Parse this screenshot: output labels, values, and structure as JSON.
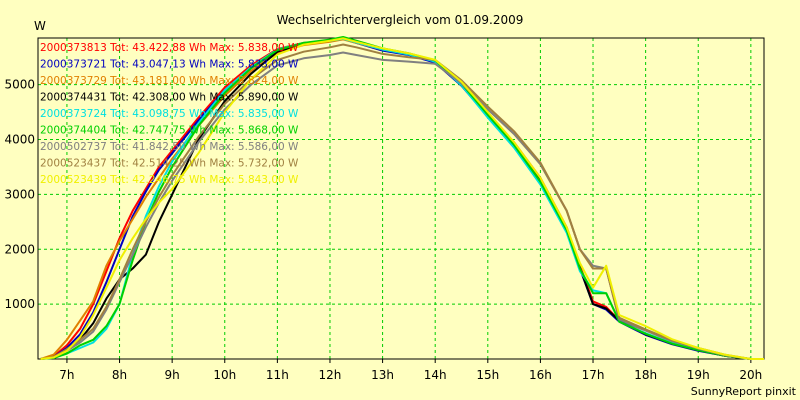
{
  "chart_data": {
    "type": "line",
    "title": "Wechselrichtervergleich vom 01.09.2009",
    "ylabel": "W",
    "footer": "SunnyReport pinxit",
    "background": "#ffffc0",
    "grid_color": "#00cc00",
    "grid": true,
    "legend_position": "top-left",
    "xlim": [
      6.45,
      20.25
    ],
    "ylim": [
      0,
      5850
    ],
    "x_ticks": [
      7,
      8,
      9,
      10,
      11,
      12,
      13,
      14,
      15,
      16,
      17,
      18,
      19,
      20
    ],
    "x_tick_labels": [
      "7h",
      "8h",
      "9h",
      "10h",
      "11h",
      "12h",
      "13h",
      "14h",
      "15h",
      "16h",
      "17h",
      "18h",
      "19h",
      "20h"
    ],
    "y_ticks": [
      1000,
      2000,
      3000,
      4000,
      5000
    ],
    "y_tick_labels": [
      "1000",
      "2000",
      "3000",
      "4000",
      "5000"
    ],
    "series": [
      {
        "name": "2000373813 Tot: 43.422,88 Wh Max: 5.838,00 W",
        "color": "#ff0000",
        "x": [
          6.5,
          6.75,
          7,
          7.25,
          7.5,
          7.75,
          8,
          8.25,
          8.5,
          8.75,
          9,
          9.5,
          10,
          10.5,
          11,
          11.5,
          12,
          12.25,
          12.5,
          13,
          13.5,
          14,
          14.5,
          15,
          15.5,
          16,
          16.5,
          16.75,
          17,
          17.25,
          17.5,
          18,
          18.5,
          19,
          19.5,
          20,
          20.25
        ],
        "y": [
          0,
          50,
          250,
          550,
          1000,
          1600,
          2200,
          2700,
          3100,
          3500,
          3800,
          4400,
          4950,
          5350,
          5650,
          5760,
          5800,
          5838,
          5780,
          5650,
          5560,
          5420,
          5000,
          4450,
          3950,
          3300,
          2400,
          1700,
          1050,
          950,
          700,
          450,
          280,
          160,
          60,
          0,
          0
        ]
      },
      {
        "name": "2000373721 Tot: 43.047,13 Wh Max: 5.833,00 W",
        "color": "#0000c0",
        "x": [
          6.5,
          6.75,
          7,
          7.25,
          7.5,
          7.75,
          8,
          8.25,
          8.5,
          8.75,
          9,
          9.5,
          10,
          10.5,
          11,
          11.5,
          12,
          12.25,
          12.5,
          13,
          13.5,
          14,
          14.5,
          15,
          15.5,
          16,
          16.5,
          16.75,
          17,
          17.25,
          17.5,
          18,
          18.5,
          19,
          19.5,
          20,
          20.25
        ],
        "y": [
          0,
          40,
          200,
          450,
          850,
          1400,
          2000,
          2600,
          3050,
          3450,
          3750,
          4350,
          4900,
          5300,
          5620,
          5740,
          5790,
          5833,
          5760,
          5620,
          5540,
          5400,
          4980,
          4420,
          3900,
          3250,
          2350,
          1650,
          1000,
          900,
          680,
          440,
          270,
          150,
          60,
          0,
          0
        ]
      },
      {
        "name": "2000373729 Tot: 43.181,00 Wh Max: 5.824,00 W",
        "color": "#e08000",
        "x": [
          6.5,
          6.75,
          7,
          7.25,
          7.5,
          7.75,
          8,
          8.25,
          8.5,
          8.75,
          9,
          9.5,
          10,
          10.5,
          11,
          11.5,
          12,
          12.25,
          12.5,
          13,
          13.5,
          14,
          14.5,
          15,
          15.5,
          16,
          16.5,
          16.75,
          17,
          17.25,
          17.5,
          18,
          18.5,
          19,
          19.5,
          20,
          20.25
        ],
        "y": [
          0,
          80,
          350,
          700,
          1050,
          1700,
          2150,
          2550,
          2950,
          3300,
          3650,
          4250,
          4800,
          5250,
          5580,
          5720,
          5780,
          5824,
          5760,
          5640,
          5560,
          5440,
          5050,
          4550,
          4100,
          3550,
          2700,
          2000,
          1650,
          1650,
          700,
          520,
          320,
          180,
          70,
          0,
          0
        ]
      },
      {
        "name": "2000374431 Tot: 42.308,00 Wh Max: 5.890,00 W",
        "color": "#000000",
        "x": [
          6.5,
          6.75,
          7,
          7.25,
          7.5,
          7.75,
          8,
          8.25,
          8.5,
          8.75,
          9,
          9.5,
          10,
          10.5,
          11,
          11.5,
          12,
          12.25,
          12.5,
          13,
          13.5,
          14,
          14.5,
          15,
          15.5,
          16,
          16.5,
          16.75,
          17,
          17.25,
          17.5,
          18,
          18.5,
          19,
          19.5,
          20,
          20.25
        ],
        "y": [
          0,
          30,
          180,
          350,
          650,
          1100,
          1450,
          1650,
          1900,
          2500,
          3000,
          4000,
          4700,
          5200,
          5600,
          5750,
          5810,
          5840,
          5790,
          5650,
          5560,
          5430,
          5020,
          4450,
          3920,
          3280,
          2380,
          1660,
          1000,
          920,
          700,
          450,
          280,
          160,
          60,
          0,
          0
        ]
      },
      {
        "name": "2000373724 Tot: 43.098,75 Wh Max: 5.835,00 W",
        "color": "#00e0e0",
        "x": [
          6.5,
          6.75,
          7,
          7.25,
          7.5,
          7.75,
          8,
          8.25,
          8.5,
          8.75,
          9,
          9.5,
          10,
          10.5,
          11,
          11.5,
          12,
          12.25,
          12.5,
          13,
          13.5,
          14,
          14.5,
          15,
          15.5,
          16,
          16.5,
          16.75,
          17,
          17.25,
          17.5,
          18,
          18.5,
          19,
          19.5,
          20,
          20.25
        ],
        "y": [
          0,
          20,
          100,
          200,
          300,
          550,
          1000,
          1900,
          2600,
          3150,
          3600,
          4300,
          4900,
          5320,
          5640,
          5760,
          5800,
          5835,
          5770,
          5640,
          5550,
          5420,
          4990,
          4400,
          3850,
          3180,
          2300,
          1600,
          1250,
          1200,
          680,
          470,
          290,
          170,
          70,
          0,
          0
        ]
      },
      {
        "name": "2000374404 Tot: 42.747,75 Wh Max: 5.868,00 W",
        "color": "#00d000",
        "x": [
          6.5,
          6.75,
          7,
          7.25,
          7.5,
          7.75,
          8,
          8.25,
          8.5,
          8.75,
          9,
          9.5,
          10,
          10.5,
          11,
          11.5,
          12,
          12.25,
          12.5,
          13,
          13.5,
          14,
          14.5,
          15,
          15.5,
          16,
          16.5,
          16.75,
          17,
          17.25,
          17.5,
          18,
          18.5,
          19,
          19.5,
          20,
          20.25
        ],
        "y": [
          0,
          20,
          100,
          250,
          350,
          600,
          1000,
          1800,
          2500,
          3050,
          3500,
          4250,
          4850,
          5300,
          5630,
          5760,
          5820,
          5868,
          5800,
          5660,
          5570,
          5440,
          5020,
          4450,
          3900,
          3230,
          2350,
          1650,
          1200,
          1200,
          680,
          460,
          280,
          160,
          60,
          0,
          0
        ]
      },
      {
        "name": "2000502737 Tot: 41.842,50 Wh Max: 5.586,00 W",
        "color": "#808080",
        "x": [
          6.5,
          6.75,
          7,
          7.25,
          7.5,
          7.75,
          8,
          8.25,
          8.5,
          8.75,
          9,
          9.5,
          10,
          10.5,
          11,
          11.5,
          12,
          12.25,
          12.5,
          13,
          13.5,
          14,
          14.5,
          15,
          15.5,
          16,
          16.5,
          16.75,
          17,
          17.25,
          17.5,
          18,
          18.5,
          19,
          19.5,
          20,
          20.25
        ],
        "y": [
          0,
          30,
          150,
          300,
          500,
          900,
          1400,
          1900,
          2400,
          2850,
          3250,
          3950,
          4550,
          5000,
          5350,
          5480,
          5540,
          5586,
          5540,
          5450,
          5420,
          5380,
          5020,
          4550,
          4100,
          3550,
          2700,
          2000,
          1700,
          1650,
          720,
          520,
          330,
          190,
          70,
          0,
          0
        ]
      },
      {
        "name": "2000523437 Tot: 42.514,25 Wh Max: 5.732,00 W",
        "color": "#a08040",
        "x": [
          6.5,
          6.75,
          7,
          7.25,
          7.5,
          7.75,
          8,
          8.25,
          8.5,
          8.75,
          9,
          9.5,
          10,
          10.5,
          11,
          11.5,
          12,
          12.25,
          12.5,
          13,
          13.5,
          14,
          14.5,
          15,
          15.5,
          16,
          16.5,
          16.75,
          17,
          17.25,
          17.5,
          18,
          18.5,
          19,
          19.5,
          20,
          20.25
        ],
        "y": [
          0,
          40,
          180,
          350,
          550,
          950,
          1450,
          2000,
          2500,
          2950,
          3350,
          4050,
          4650,
          5100,
          5450,
          5600,
          5680,
          5732,
          5680,
          5560,
          5500,
          5450,
          5080,
          4600,
          4150,
          3580,
          2700,
          2000,
          1650,
          1650,
          750,
          540,
          340,
          200,
          80,
          0,
          0
        ]
      },
      {
        "name": "2000523439 Tot: 42.246,75 Wh Max: 5.843,00 W",
        "color": "#f0f000",
        "x": [
          6.5,
          6.75,
          7,
          7.25,
          7.5,
          7.75,
          8,
          8.25,
          8.5,
          8.75,
          9,
          9.5,
          10,
          10.5,
          11,
          11.5,
          12,
          12.25,
          12.5,
          13,
          13.5,
          14,
          14.5,
          15,
          15.5,
          16,
          16.5,
          16.75,
          17,
          17.25,
          17.5,
          18,
          18.5,
          19,
          19.5,
          20,
          20.25
        ],
        "y": [
          0,
          30,
          150,
          400,
          800,
          1300,
          1800,
          2200,
          2550,
          2850,
          3100,
          3750,
          4500,
          5100,
          5550,
          5730,
          5800,
          5843,
          5780,
          5660,
          5570,
          5450,
          5050,
          4500,
          3950,
          3300,
          2400,
          1750,
          1300,
          1700,
          800,
          600,
          360,
          200,
          80,
          0,
          0
        ]
      }
    ]
  }
}
